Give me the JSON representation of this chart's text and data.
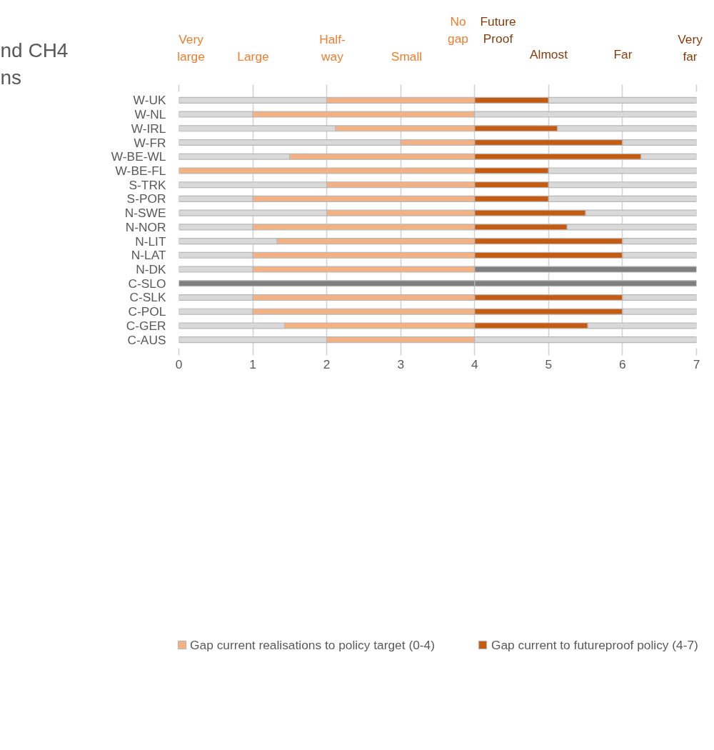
{
  "chart_data": {
    "type": "bar",
    "orientation": "horizontal",
    "stacked": true,
    "title": "nd CH4",
    "subtitle": "ns",
    "categories": [
      "W-UK",
      "W-NL",
      "W-IRL",
      "W-FR",
      "W-BE-WL",
      "W-BE-FL",
      "S-TRK",
      "S-POR",
      "N-SWE",
      "N-NOR",
      "N-LIT",
      "N-LAT",
      "N-DK",
      "C-SLO",
      "C-SLK",
      "C-POL",
      "C-GER",
      "C-AUS"
    ],
    "series": [
      {
        "colors": [
          "#d9d9d9",
          "#d9d9d9",
          "#d9d9d9",
          "#d9d9d9",
          "#d9d9d9",
          "#d9d9d9",
          "#d9d9d9",
          "#d9d9d9",
          "#d9d9d9",
          "#d9d9d9",
          "#d9d9d9",
          "#d9d9d9",
          "#d9d9d9",
          "#7f7f7f",
          "#d9d9d9",
          "#d9d9d9",
          "#d9d9d9",
          "#d9d9d9"
        ],
        "values": [
          2,
          1,
          2.12,
          3,
          1.5,
          0,
          2,
          1,
          2,
          1,
          1.33,
          1,
          1,
          4,
          1,
          1,
          1.43,
          2
        ]
      },
      {
        "name": "Gap current realisations to policy target (0-4)",
        "color": "#f4b183",
        "values": [
          2,
          3,
          1.88,
          1,
          2.5,
          4,
          2,
          3,
          2,
          3,
          2.67,
          3,
          3,
          0,
          3,
          3,
          2.57,
          2
        ]
      },
      {
        "name": "Gap current to futureproof policy (4-7)",
        "color": "#c55a11",
        "values": [
          1,
          0,
          1.12,
          2,
          2.25,
          1,
          1,
          1,
          1.5,
          1.25,
          2,
          2,
          0,
          0,
          2,
          2,
          1.53,
          0
        ]
      },
      {
        "colors": [
          "#d9d9d9",
          "#d9d9d9",
          "#d9d9d9",
          "#d9d9d9",
          "#d9d9d9",
          "#d9d9d9",
          "#d9d9d9",
          "#d9d9d9",
          "#d9d9d9",
          "#d9d9d9",
          "#d9d9d9",
          "#d9d9d9",
          "#7f7f7f",
          "#7f7f7f",
          "#d9d9d9",
          "#d9d9d9",
          "#d9d9d9",
          "#d9d9d9"
        ],
        "values": [
          2,
          3,
          1.88,
          1,
          0.75,
          2,
          2,
          2,
          1.5,
          1.75,
          1,
          1,
          3,
          3,
          1,
          1,
          1.47,
          3
        ]
      }
    ],
    "xlim": [
      0,
      7
    ],
    "xticks": [
      0,
      1,
      2,
      3,
      4,
      5,
      6,
      7
    ],
    "annotations": [
      "Very\nlarge",
      "Large",
      "Half-\nway",
      "Small",
      "No\ngap",
      "Future\nProof",
      "Almost",
      "Far",
      "Very\nfar"
    ],
    "grid": "x",
    "legend": "bottom"
  }
}
